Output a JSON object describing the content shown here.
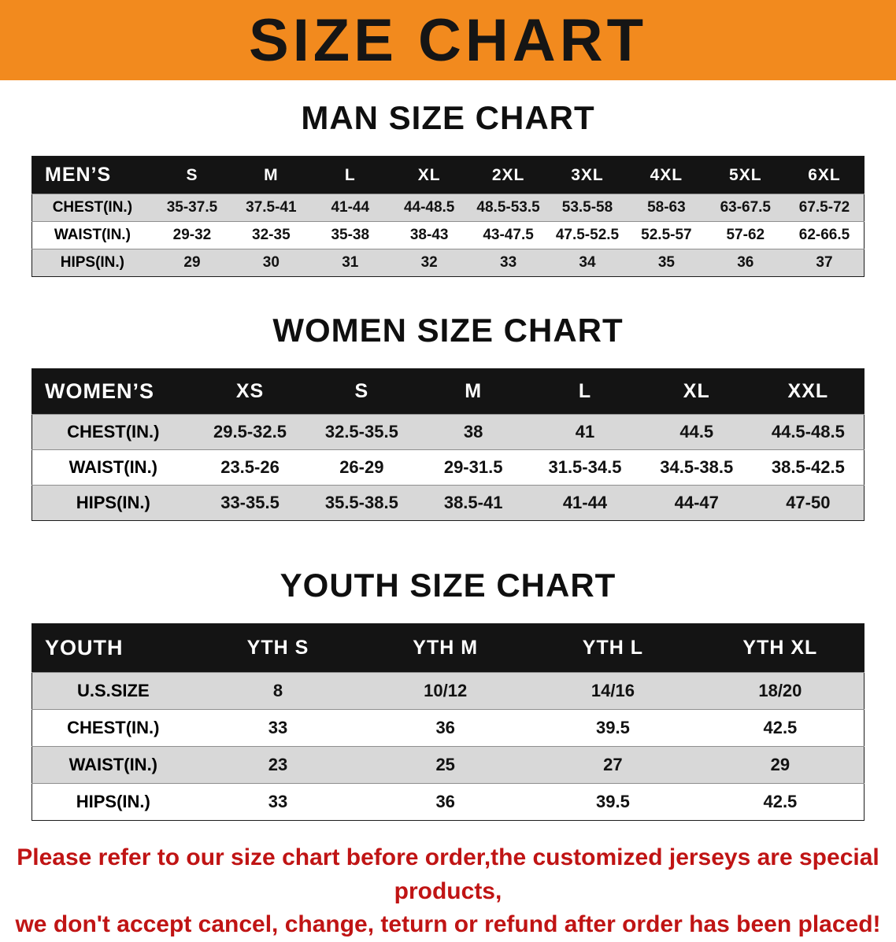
{
  "colors": {
    "banner_bg": "#F28A1E",
    "table_header_bg": "#141414",
    "row_alt_bg": "#D8D8D8",
    "disclaimer_text": "#C01414"
  },
  "banner": {
    "title": "SIZE CHART"
  },
  "men": {
    "heading": "MAN SIZE CHART",
    "table": {
      "label": "MEN’S",
      "columns": [
        "S",
        "M",
        "L",
        "XL",
        "2XL",
        "3XL",
        "4XL",
        "5XL",
        "6XL"
      ],
      "rows": [
        {
          "label": "CHEST(IN.)",
          "values": [
            "35-37.5",
            "37.5-41",
            "41-44",
            "44-48.5",
            "48.5-53.5",
            "53.5-58",
            "58-63",
            "63-67.5",
            "67.5-72"
          ]
        },
        {
          "label": "WAIST(IN.)",
          "values": [
            "29-32",
            "32-35",
            "35-38",
            "38-43",
            "43-47.5",
            "47.5-52.5",
            "52.5-57",
            "57-62",
            "62-66.5"
          ]
        },
        {
          "label": "HIPS(IN.)",
          "values": [
            "29",
            "30",
            "31",
            "32",
            "33",
            "34",
            "35",
            "36",
            "37"
          ]
        }
      ]
    }
  },
  "women": {
    "heading": "WOMEN SIZE CHART",
    "table": {
      "label": "WOMEN’S",
      "columns": [
        "XS",
        "S",
        "M",
        "L",
        "XL",
        "XXL"
      ],
      "rows": [
        {
          "label": "CHEST(IN.)",
          "values": [
            "29.5-32.5",
            "32.5-35.5",
            "38",
            "41",
            "44.5",
            "44.5-48.5"
          ]
        },
        {
          "label": "WAIST(IN.)",
          "values": [
            "23.5-26",
            "26-29",
            "29-31.5",
            "31.5-34.5",
            "34.5-38.5",
            "38.5-42.5"
          ]
        },
        {
          "label": "HIPS(IN.)",
          "values": [
            "33-35.5",
            "35.5-38.5",
            "38.5-41",
            "41-44",
            "44-47",
            "47-50"
          ]
        }
      ]
    }
  },
  "youth": {
    "heading": "YOUTH SIZE CHART",
    "table": {
      "label": "YOUTH",
      "columns": [
        "YTH S",
        "YTH M",
        "YTH L",
        "YTH XL"
      ],
      "rows": [
        {
          "label": "U.S.SIZE",
          "values": [
            "8",
            "10/12",
            "14/16",
            "18/20"
          ]
        },
        {
          "label": "CHEST(IN.)",
          "values": [
            "33",
            "36",
            "39.5",
            "42.5"
          ]
        },
        {
          "label": "WAIST(IN.)",
          "values": [
            "23",
            "25",
            "27",
            "29"
          ]
        },
        {
          "label": "HIPS(IN.)",
          "values": [
            "33",
            "36",
            "39.5",
            "42.5"
          ]
        }
      ]
    }
  },
  "disclaimer": {
    "lines": [
      "Please refer to our size chart before order,the customized jerseys are special products,",
      "we don't accept cancel, change, teturn or refund after order has been placed!"
    ]
  }
}
